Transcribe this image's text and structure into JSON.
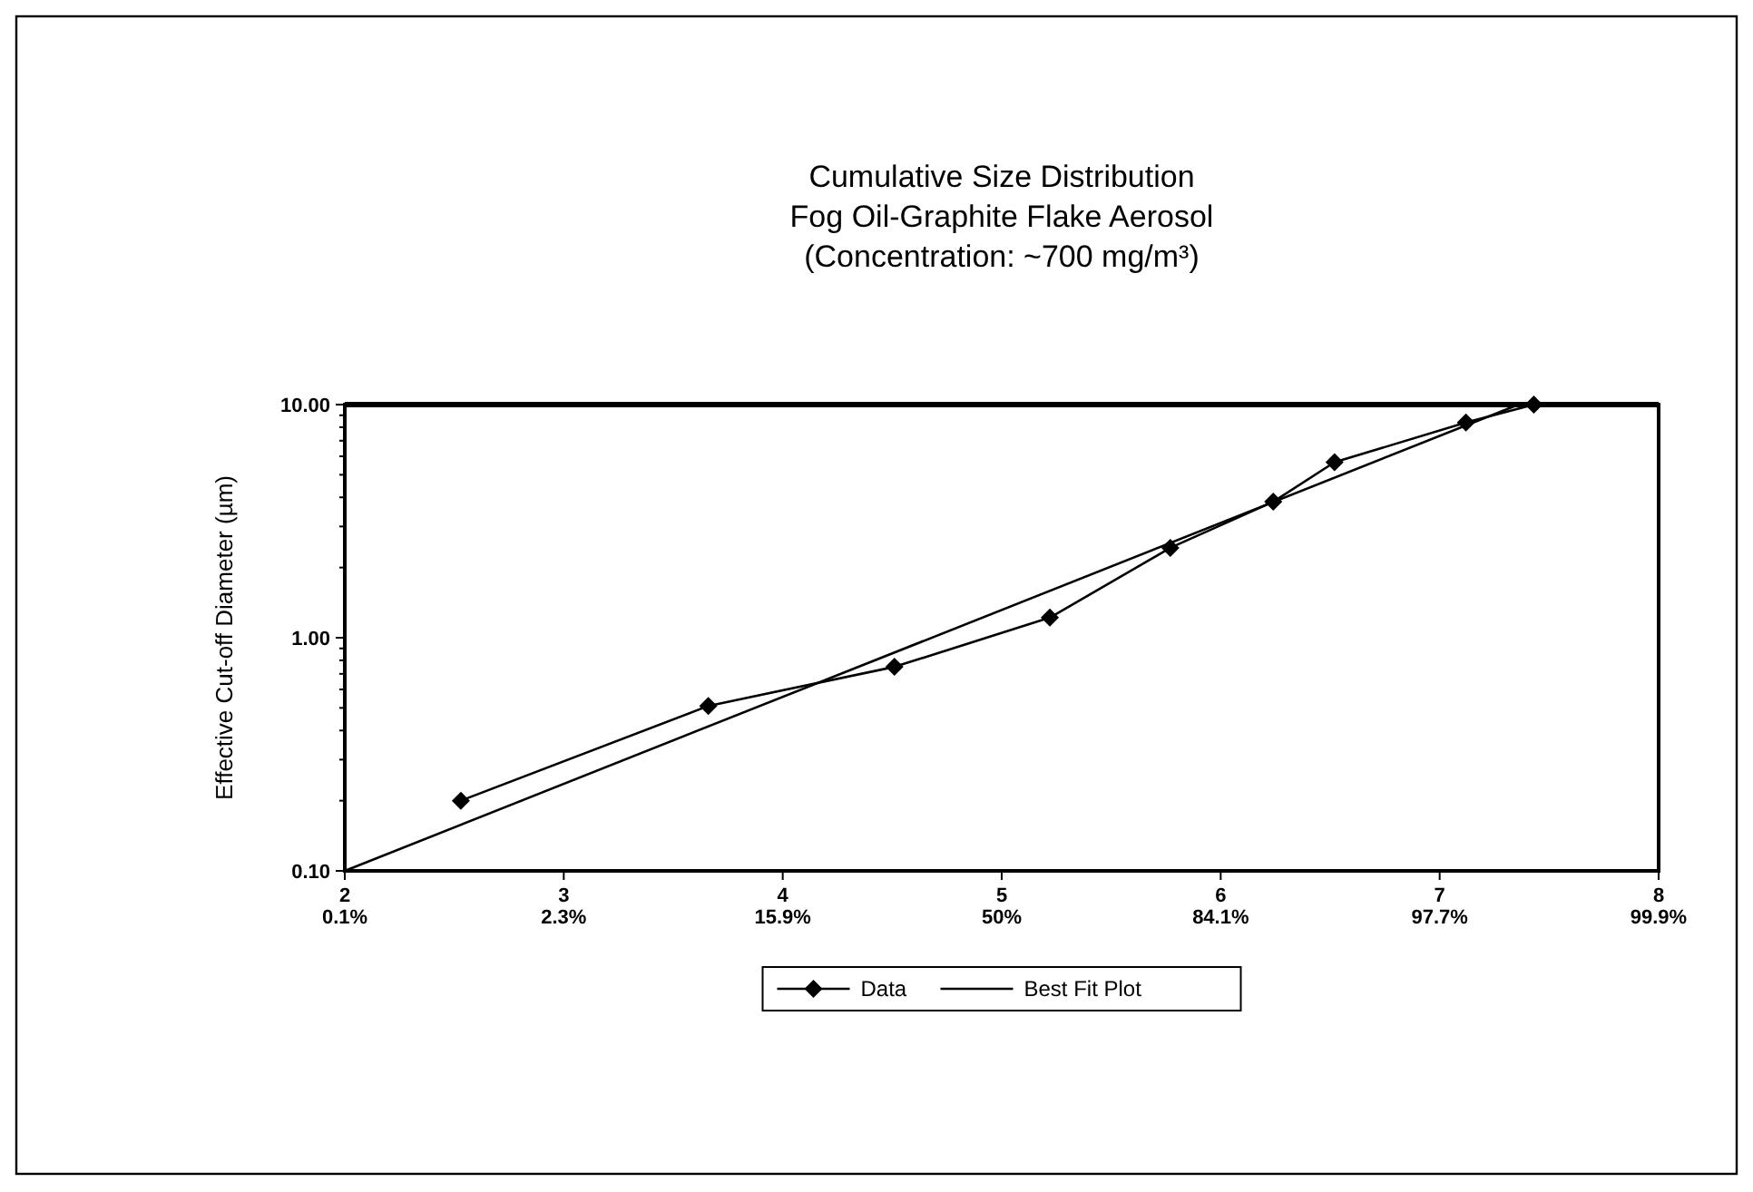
{
  "chart_data": {
    "type": "line",
    "title": "Cumulative Size Distribution\nFog Oil-Graphite Flake Aerosol\n(Concentration: ~700 mg/m³)",
    "ylabel": "Effective Cut-off Diameter (µm)",
    "series": [
      {
        "name": "Data",
        "color": "#000000",
        "marker": "diamond",
        "x": [
          2.53,
          3.66,
          4.51,
          5.22,
          5.77,
          6.24,
          6.52,
          7.12,
          7.43
        ],
        "values": [
          0.2,
          0.51,
          0.75,
          1.22,
          2.43,
          3.83,
          5.66,
          8.37,
          10
        ]
      },
      {
        "name": "Best Fit Plot",
        "color": "#000000",
        "marker": "none",
        "x": [
          2,
          7.36
        ],
        "values": [
          0.1,
          10
        ]
      }
    ],
    "log": "y",
    "xlim": [
      2,
      8
    ],
    "ylim": [
      0.1,
      10
    ],
    "xticks": [
      2,
      3,
      4,
      5,
      6,
      7,
      8
    ],
    "annotations": [
      "0.1%",
      "2.3%",
      "15.9%",
      "50%",
      "84.1%",
      "97.7%",
      "99.9%"
    ],
    "yticks": [
      {
        "value": 0.1,
        "label": "0.10"
      },
      {
        "value": 0.2,
        "label": null
      },
      {
        "value": 0.3,
        "label": null
      },
      {
        "value": 0.4,
        "label": null
      },
      {
        "value": 0.5,
        "label": null
      },
      {
        "value": 0.6,
        "label": null
      },
      {
        "value": 0.7,
        "label": null
      },
      {
        "value": 0.8,
        "label": null
      },
      {
        "value": 0.9,
        "label": null
      },
      {
        "value": 1,
        "label": "1.00"
      },
      {
        "value": 2,
        "label": null
      },
      {
        "value": 3,
        "label": null
      },
      {
        "value": 4,
        "label": null
      },
      {
        "value": 5,
        "label": null
      },
      {
        "value": 6,
        "label": null
      },
      {
        "value": 7,
        "label": null
      },
      {
        "value": 8,
        "label": null
      },
      {
        "value": 9,
        "label": null
      },
      {
        "value": 10,
        "label": "10.00"
      }
    ],
    "grid": false,
    "legend": "bottom"
  }
}
